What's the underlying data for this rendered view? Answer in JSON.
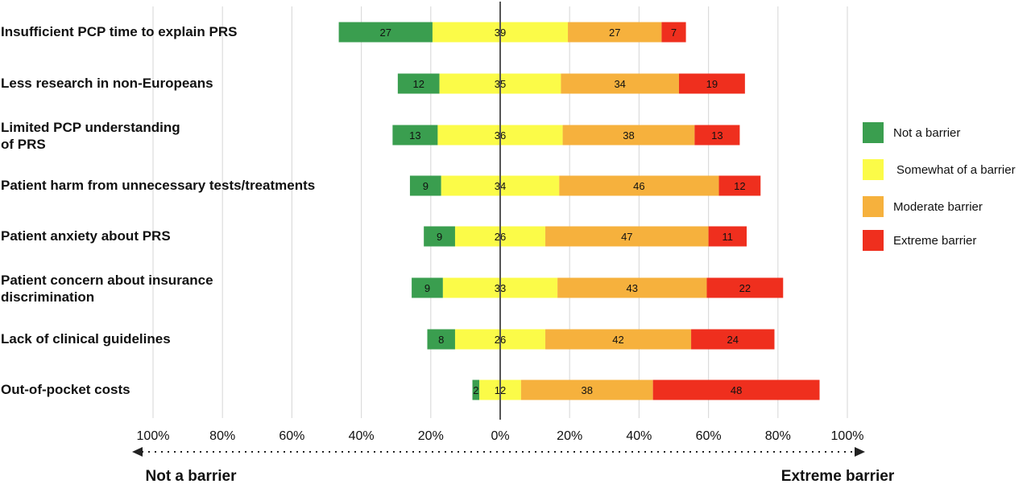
{
  "chart_data": {
    "type": "bar",
    "orientation": "horizontal",
    "stacked": "diverging",
    "categories": [
      [
        "Insufficient PCP time to explain PRS"
      ],
      [
        "Less research in non-Europeans"
      ],
      [
        "Limited PCP understanding",
        "of PRS"
      ],
      [
        "Patient harm from unnecessary tests/treatments"
      ],
      [
        "Patient anxiety about PRS"
      ],
      [
        "Patient concern about insurance",
        "discrimination"
      ],
      [
        "Lack of clinical guidelines"
      ],
      [
        "Out-of-pocket costs"
      ]
    ],
    "series": [
      {
        "name": "Not a barrier",
        "color": "#3a9e4f",
        "side": "left",
        "values": [
          27,
          12,
          13,
          9,
          9,
          9,
          8,
          2
        ]
      },
      {
        "name": "Somewhat of a barrier",
        "color": "#fbfb48",
        "side": "split",
        "values": [
          39,
          35,
          36,
          34,
          26,
          33,
          26,
          12
        ]
      },
      {
        "name": "Moderate barrier",
        "color": "#f6b13d",
        "side": "right",
        "values": [
          27,
          34,
          38,
          46,
          47,
          43,
          42,
          38
        ]
      },
      {
        "name": "Extreme barrier",
        "color": "#ef2f1e",
        "side": "right",
        "values": [
          7,
          19,
          13,
          12,
          11,
          22,
          24,
          48
        ]
      }
    ],
    "x_ticks": [
      "100%",
      "80%",
      "60%",
      "40%",
      "20%",
      "0%",
      "20%",
      "40%",
      "60%",
      "80%",
      "100%"
    ],
    "xlim": [
      -100,
      100
    ],
    "grid": true,
    "legend_placement": "right",
    "direction_labels": {
      "left": "Not a barrier",
      "right": "Extreme barrier"
    }
  }
}
